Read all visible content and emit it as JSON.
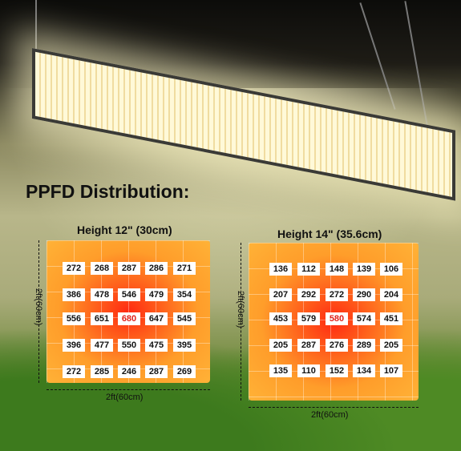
{
  "title": "PPFD Distribution:",
  "panels": [
    {
      "heading": "Height 12\" (30cm)",
      "side_label": "2ft(60cm)",
      "bottom_label": "2ft(60cm)",
      "rows": [
        [
          272,
          268,
          287,
          286,
          271
        ],
        [
          386,
          478,
          546,
          479,
          354
        ],
        [
          556,
          651,
          680,
          647,
          545
        ],
        [
          396,
          477,
          550,
          475,
          395
        ],
        [
          272,
          285,
          246,
          287,
          269
        ]
      ]
    },
    {
      "heading": "Height 14\" (35.6cm)",
      "side_label": "2ft(60cm)",
      "bottom_label": "2ft(60cm)",
      "rows": [
        [
          136,
          112,
          148,
          139,
          106
        ],
        [
          207,
          292,
          272,
          290,
          204
        ],
        [
          453,
          579,
          580,
          574,
          451
        ],
        [
          205,
          287,
          276,
          289,
          205
        ],
        [
          135,
          110,
          152,
          134,
          107
        ]
      ]
    }
  ]
}
